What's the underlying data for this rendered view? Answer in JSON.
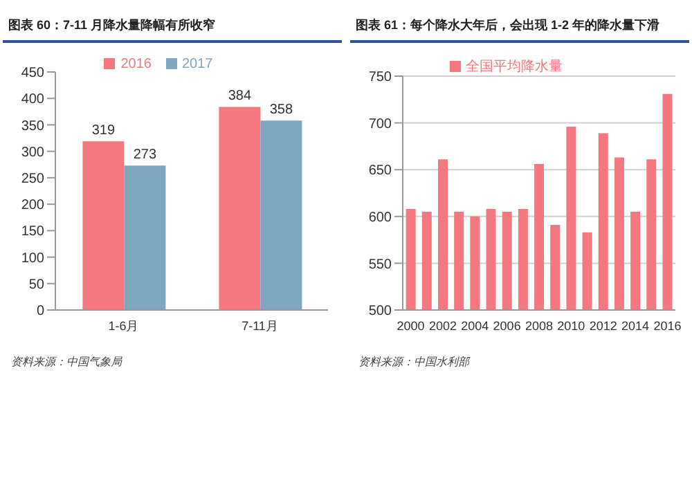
{
  "chart_data": [
    {
      "type": "bar",
      "title": "图表 60：7-11 月降水量降幅有所收窄",
      "categories": [
        "1-6月",
        "7-11月"
      ],
      "series": [
        {
          "name": "2016",
          "color": "#f4787f",
          "values": [
            319,
            384
          ]
        },
        {
          "name": "2017",
          "color": "#7fa6c1",
          "values": [
            273,
            358
          ]
        }
      ],
      "ylim": [
        0,
        450
      ],
      "yticks": [
        0,
        50,
        100,
        150,
        200,
        250,
        300,
        350,
        400,
        450
      ],
      "grid": false,
      "legend": "top",
      "data_labels": true,
      "annotations": [
        "资料来源：中国气象局"
      ]
    },
    {
      "type": "bar",
      "title": "图表 61：每个降水大年后，会出现 1-2 年的降水量下滑",
      "categories": [
        "2000",
        null,
        "2002",
        null,
        "2004",
        null,
        "2006",
        null,
        "2008",
        null,
        "2010",
        null,
        "2012",
        null,
        "2014",
        null,
        "2016"
      ],
      "series": [
        {
          "name": "全国平均降水量",
          "color": "#f4787f",
          "values": [
            608,
            605,
            661,
            605,
            600,
            608,
            605,
            608,
            656,
            591,
            696,
            583,
            689,
            663,
            605,
            661,
            731
          ]
        }
      ],
      "ylim": [
        500,
        750
      ],
      "yticks": [
        500,
        550,
        600,
        650,
        700,
        750
      ],
      "grid": "y",
      "legend": "top",
      "annotations": [
        "资料来源：中国水利部"
      ]
    }
  ]
}
